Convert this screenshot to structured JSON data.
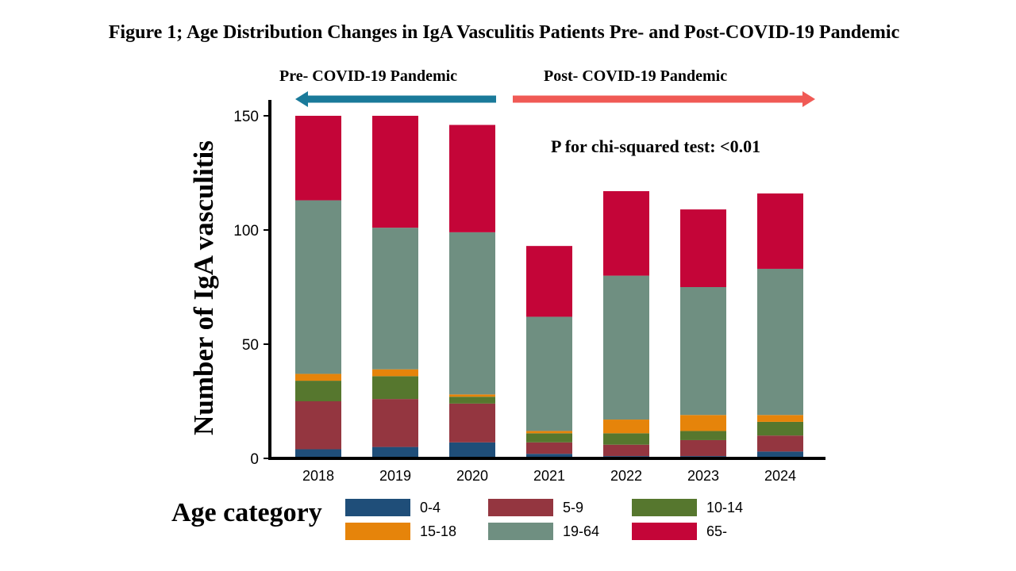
{
  "title": "Figure 1; Age Distribution Changes in IgA Vasculitis Patients Pre- and Post-COVID-19 Pandemic",
  "eras": {
    "pre": {
      "label": "Pre- COVID-19 Pandemic",
      "color": "#1a7a9a"
    },
    "post": {
      "label": "Post- COVID-19 Pandemic",
      "color": "#f05a55"
    }
  },
  "annotation": "P for chi-squared test: <0.01",
  "legend_title": "Age category",
  "chart_data": {
    "type": "bar",
    "stacked": true,
    "categories": [
      "2018",
      "2019",
      "2020",
      "2021",
      "2022",
      "2023",
      "2024"
    ],
    "ylabel": "Number of IgA vasculitis",
    "xlabel": "",
    "ylim": [
      0,
      150
    ],
    "yticks": [
      0,
      50,
      100,
      150
    ],
    "grid": false,
    "legend_position": "bottom",
    "series": [
      {
        "name": "0-4",
        "color": "#1f4e79",
        "values": [
          4,
          5,
          7,
          2,
          1,
          1,
          3
        ]
      },
      {
        "name": "5-9",
        "color": "#943640",
        "values": [
          21,
          21,
          17,
          5,
          5,
          7,
          7
        ]
      },
      {
        "name": "10-14",
        "color": "#56772e",
        "values": [
          9,
          10,
          3,
          4,
          5,
          4,
          6
        ]
      },
      {
        "name": "15-18",
        "color": "#e6840a",
        "values": [
          3,
          3,
          1,
          1,
          6,
          7,
          3
        ]
      },
      {
        "name": "19-64",
        "color": "#6f8f81",
        "values": [
          76,
          62,
          71,
          50,
          63,
          56,
          64
        ]
      },
      {
        "name": "65-",
        "color": "#c40538",
        "values": [
          37,
          49,
          47,
          31,
          37,
          34,
          33
        ]
      }
    ]
  }
}
